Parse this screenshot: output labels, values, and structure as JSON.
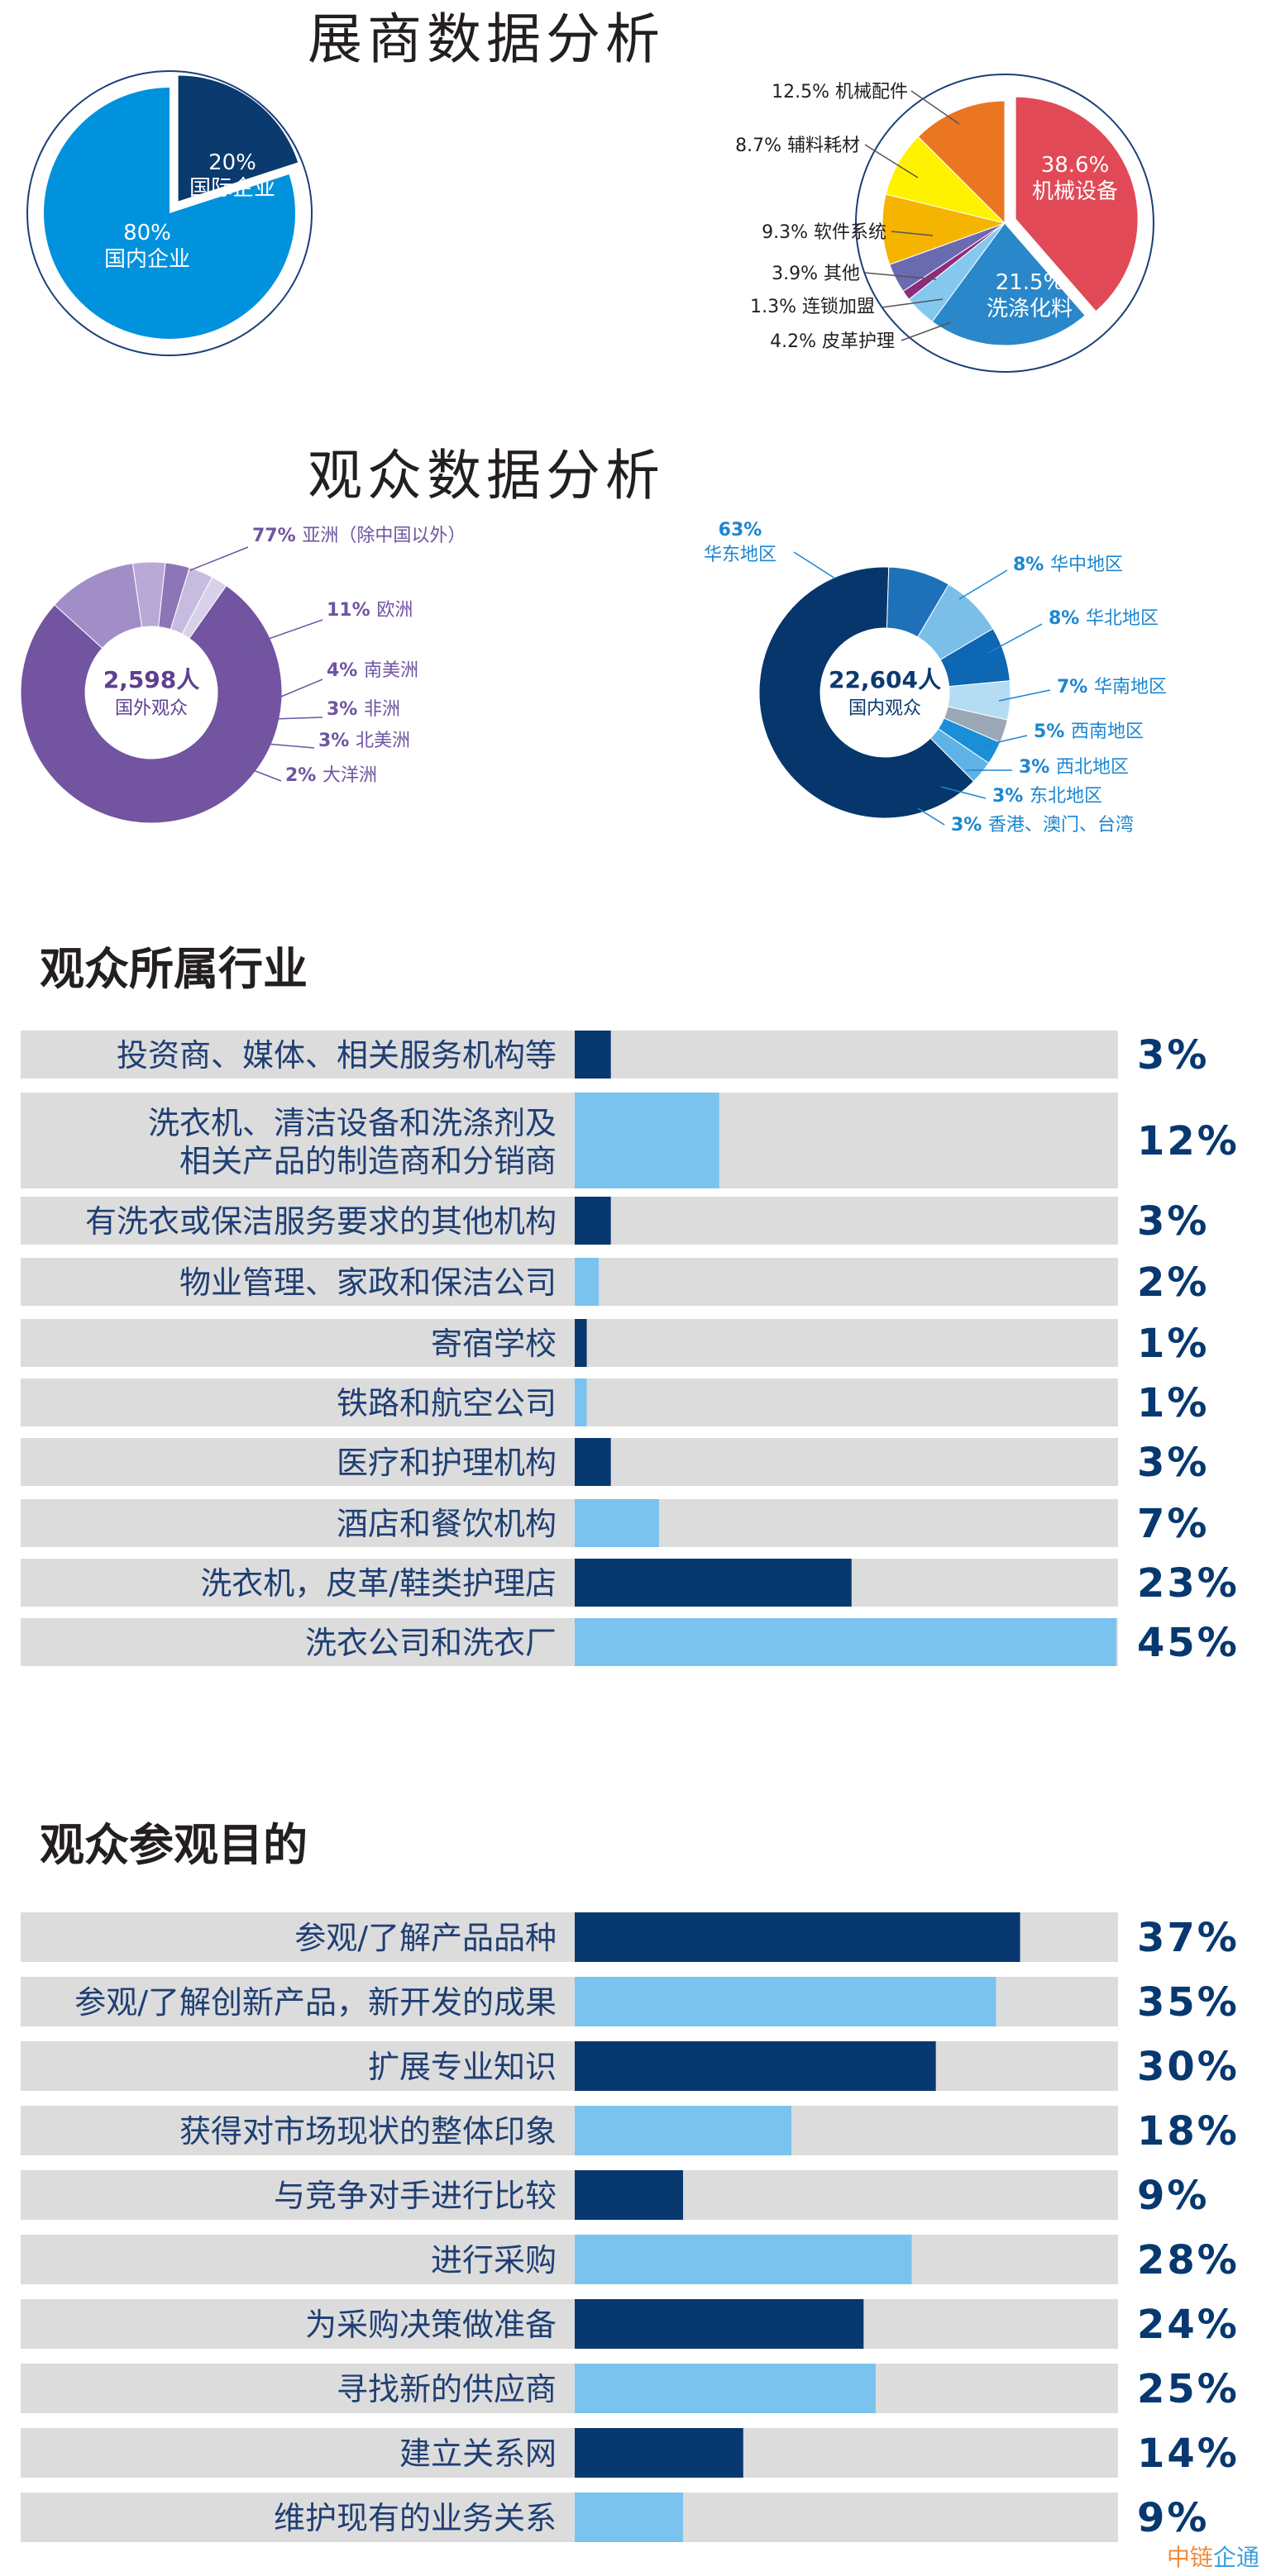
{
  "exhibitor_title": "展商数据分析",
  "visitor_title": "观众数据分析",
  "industry_heading": "观众所属行业",
  "purpose_heading": "观众参观目的",
  "watermark": {
    "part1": "中链",
    "part2": "企通"
  },
  "colors": {
    "dark_navy": "#07386f",
    "light_blue": "#79c3ee",
    "bar_bg": "#dcdcdc",
    "percent_text": "#07386f",
    "label_text": "#1f3f73"
  },
  "chart_data": [
    {
      "type": "pie",
      "name": "exhibitor-origin",
      "slices": [
        {
          "label": "国际企业",
          "value": 20,
          "pct": "20%",
          "color": "#0a3a6e",
          "text_color": "#ffffff"
        },
        {
          "label": "国内企业",
          "value": 80,
          "pct": "80%",
          "color": "#0092dd",
          "text_color": "#ffffff"
        }
      ]
    },
    {
      "type": "pie",
      "name": "exhibitor-category",
      "slices": [
        {
          "label": "机械设备",
          "value": 38.6,
          "pct": "38.6%",
          "color": "#e14956"
        },
        {
          "label": "洗涤化料",
          "value": 21.5,
          "pct": "21.5%",
          "color": "#2a87c9"
        },
        {
          "label": "皮革护理",
          "value": 4.2,
          "pct": "4.2%",
          "color": "#84c8ef"
        },
        {
          "label": "连锁加盟",
          "value": 1.3,
          "pct": "1.3%",
          "color": "#8e2c7c"
        },
        {
          "label": "其他",
          "value": 3.9,
          "pct": "3.9%",
          "color": "#6a6ab0"
        },
        {
          "label": "软件系统",
          "value": 9.3,
          "pct": "9.3%",
          "color": "#f4b400"
        },
        {
          "label": "辅料耗材",
          "value": 8.7,
          "pct": "8.7%",
          "color": "#fff200"
        },
        {
          "label": "机械配件",
          "value": 12.5,
          "pct": "12.5%",
          "color": "#ea7622"
        }
      ]
    },
    {
      "type": "pie",
      "name": "foreign-visitors",
      "center_value": "2,598人",
      "center_label": "国外观众",
      "slices": [
        {
          "label": "亚洲（除中国以外）",
          "value": 77,
          "pct": "77%",
          "color": "#7254a0"
        },
        {
          "label": "欧洲",
          "value": 11,
          "pct": "11%",
          "color": "#a28ec6"
        },
        {
          "label": "南美洲",
          "value": 4,
          "pct": "4%",
          "color": "#b8a9d6"
        },
        {
          "label": "非洲",
          "value": 3,
          "pct": "3%",
          "color": "#8d76b8"
        },
        {
          "label": "北美洲",
          "value": 3,
          "pct": "3%",
          "color": "#c7bcdf"
        },
        {
          "label": "大洋洲",
          "value": 2,
          "pct": "2%",
          "color": "#d9d0ea"
        }
      ]
    },
    {
      "type": "pie",
      "name": "domestic-visitors",
      "center_value": "22,604人",
      "center_label": "国内观众",
      "slices": [
        {
          "label": "华东地区",
          "value": 63,
          "pct": "63%",
          "color": "#06366b"
        },
        {
          "label": "华中地区",
          "value": 8,
          "pct": "8%",
          "color": "#1e70b8"
        },
        {
          "label": "华北地区",
          "value": 8,
          "pct": "8%",
          "color": "#7bbfe8"
        },
        {
          "label": "华南地区",
          "value": 7,
          "pct": "7%",
          "color": "#0d67b3"
        },
        {
          "label": "西南地区",
          "value": 5,
          "pct": "5%",
          "color": "#b5dcf3"
        },
        {
          "label": "西北地区",
          "value": 3,
          "pct": "3%",
          "color": "#9aa7b6"
        },
        {
          "label": "东北地区",
          "value": 3,
          "pct": "3%",
          "color": "#1a8fd8"
        },
        {
          "label": "香港、澳门、台湾",
          "value": 3,
          "pct": "3%",
          "color": "#5fb2e6"
        }
      ]
    },
    {
      "type": "bar",
      "orientation": "horizontal",
      "name": "visitor-industry",
      "xlim": [
        0,
        45
      ],
      "rows": [
        {
          "label": "投资商、媒体、相关服务机构等",
          "value": 3,
          "pct": "3%"
        },
        {
          "label": "洗衣机、清洁设备和洗涤剂及",
          "label2": "相关产品的制造商和分销商",
          "value": 12,
          "pct": "12%"
        },
        {
          "label": "有洗衣或保洁服务要求的其他机构",
          "value": 3,
          "pct": "3%"
        },
        {
          "label": "物业管理、家政和保洁公司",
          "value": 2,
          "pct": "2%"
        },
        {
          "label": "寄宿学校",
          "value": 1,
          "pct": "1%"
        },
        {
          "label": "铁路和航空公司",
          "value": 1,
          "pct": "1%"
        },
        {
          "label": "医疗和护理机构",
          "value": 3,
          "pct": "3%"
        },
        {
          "label": "酒店和餐饮机构",
          "value": 7,
          "pct": "7%"
        },
        {
          "label": "洗衣机，皮革/鞋类护理店",
          "value": 23,
          "pct": "23%"
        },
        {
          "label": "洗衣公司和洗衣厂",
          "value": 45,
          "pct": "45%"
        }
      ]
    },
    {
      "type": "bar",
      "orientation": "horizontal",
      "name": "visit-purpose",
      "xlim": [
        0,
        45
      ],
      "rows": [
        {
          "label": "参观/了解产品品种",
          "value": 37,
          "pct": "37%"
        },
        {
          "label": "参观/了解创新产品，新开发的成果",
          "value": 35,
          "pct": "35%"
        },
        {
          "label": "扩展专业知识",
          "value": 30,
          "pct": "30%"
        },
        {
          "label": "获得对市场现状的整体印象",
          "value": 18,
          "pct": "18%"
        },
        {
          "label": "与竞争对手进行比较",
          "value": 9,
          "pct": "9%"
        },
        {
          "label": "进行采购",
          "value": 28,
          "pct": "28%"
        },
        {
          "label": "为采购决策做准备",
          "value": 24,
          "pct": "24%"
        },
        {
          "label": "寻找新的供应商",
          "value": 25,
          "pct": "25%"
        },
        {
          "label": "建立关系网",
          "value": 14,
          "pct": "14%"
        },
        {
          "label": "维护现有的业务关系",
          "value": 9,
          "pct": "9%"
        }
      ]
    }
  ]
}
